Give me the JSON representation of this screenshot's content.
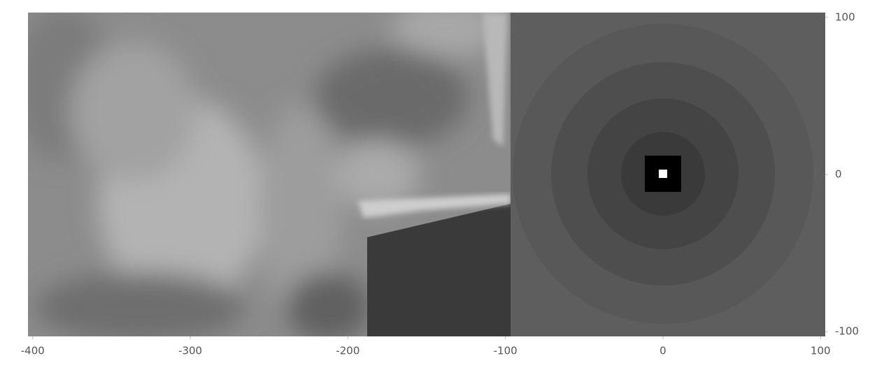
{
  "chart_data": {
    "type": "image",
    "xlim": [
      -403,
      103
    ],
    "ylim": [
      -103,
      103
    ],
    "xticks": [
      -400,
      -300,
      -200,
      -100,
      0,
      100
    ],
    "yticks": [
      -100,
      0,
      100
    ],
    "y_axis_side": "right"
  }
}
